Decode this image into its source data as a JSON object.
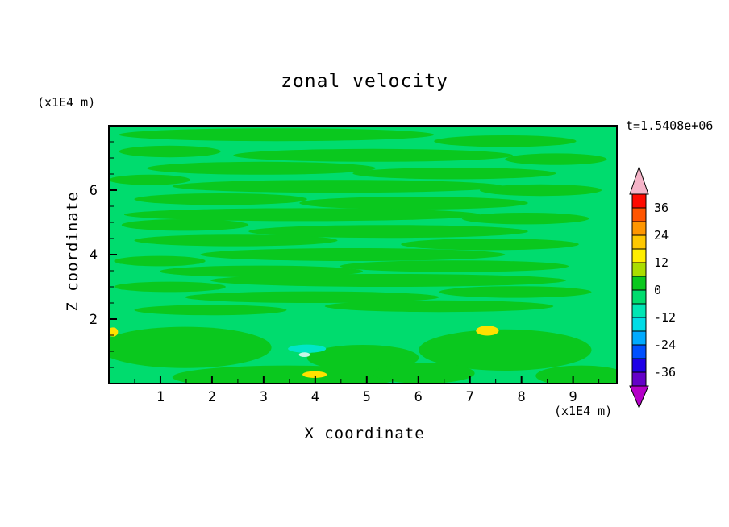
{
  "page_background": "#FFFFFF",
  "chart_data": {
    "type": "heatmap",
    "title": "zonal velocity",
    "time_annotation": "t=1.5408e+06",
    "xlabel": "X coordinate",
    "ylabel": "Z coordinate",
    "x_unit": "(x1E4 m)",
    "y_unit": "(x1E4 m)",
    "x_range": [
      0,
      9.85
    ],
    "y_range": [
      0,
      8.0
    ],
    "x_ticks": [
      1,
      2,
      3,
      4,
      5,
      6,
      7,
      8,
      9
    ],
    "x_minor_step": 0.5,
    "y_ticks": [
      2,
      4,
      6
    ],
    "y_minor_step": 0.5,
    "contour_interval": 6,
    "colorbar": {
      "tick_labels": [
        36,
        24,
        12,
        0,
        -12,
        -24,
        -36
      ],
      "levels": [
        42,
        36,
        30,
        24,
        18,
        12,
        6,
        0,
        -6,
        -12,
        -18,
        -24,
        -30,
        -36,
        -42
      ],
      "colors": [
        "#FF0A00",
        "#FF5500",
        "#FF9600",
        "#FFC800",
        "#FFEE00",
        "#AADD00",
        "#0AC81E",
        "#00DC6E",
        "#00E6B4",
        "#00DCE6",
        "#00AAFF",
        "#0050FF",
        "#1E00E6",
        "#6400C8"
      ],
      "over_arrow_color": "#F5B4C8",
      "under_arrow_color": "#B400C8"
    },
    "field": {
      "description": "Zonal velocity is near zero almost everywhere: broad areas in the -6..0 band (spring green) with thin horizontal streaks in the 0..6 band (green). Weak minima around -12 (cyan, with a pale core) near x=3.9,z=1.1; weak maxima around +13 (yellow) near x=7.4,z=1.6 and x=4.0,z=0.3 and at the left edge near z=1.6.",
      "background_color": "#00DC6E",
      "band_color": "#0AC81E",
      "bands": [
        [
          0.33,
          0.035,
          0.62,
          0.05
        ],
        [
          0.78,
          0.06,
          0.28,
          0.045
        ],
        [
          0.12,
          0.1,
          0.2,
          0.045
        ],
        [
          0.52,
          0.115,
          0.55,
          0.05
        ],
        [
          0.88,
          0.13,
          0.2,
          0.045
        ],
        [
          0.3,
          0.165,
          0.45,
          0.05
        ],
        [
          0.68,
          0.185,
          0.4,
          0.045
        ],
        [
          0.08,
          0.21,
          0.16,
          0.04
        ],
        [
          0.45,
          0.235,
          0.65,
          0.05
        ],
        [
          0.85,
          0.25,
          0.24,
          0.045
        ],
        [
          0.22,
          0.285,
          0.34,
          0.045
        ],
        [
          0.6,
          0.3,
          0.45,
          0.05
        ],
        [
          0.38,
          0.345,
          0.7,
          0.05
        ],
        [
          0.82,
          0.36,
          0.25,
          0.045
        ],
        [
          0.15,
          0.385,
          0.25,
          0.045
        ],
        [
          0.55,
          0.41,
          0.55,
          0.05
        ],
        [
          0.25,
          0.445,
          0.4,
          0.045
        ],
        [
          0.75,
          0.46,
          0.35,
          0.045
        ],
        [
          0.48,
          0.5,
          0.6,
          0.05
        ],
        [
          0.1,
          0.525,
          0.18,
          0.04
        ],
        [
          0.68,
          0.545,
          0.45,
          0.045
        ],
        [
          0.3,
          0.565,
          0.4,
          0.045
        ],
        [
          0.55,
          0.6,
          0.7,
          0.05
        ],
        [
          0.12,
          0.625,
          0.22,
          0.04
        ],
        [
          0.8,
          0.645,
          0.3,
          0.045
        ],
        [
          0.4,
          0.665,
          0.5,
          0.045
        ],
        [
          0.65,
          0.7,
          0.45,
          0.045
        ],
        [
          0.2,
          0.715,
          0.3,
          0.04
        ],
        [
          0.15,
          0.86,
          0.34,
          0.16
        ],
        [
          0.5,
          0.9,
          0.22,
          0.1
        ],
        [
          0.78,
          0.87,
          0.34,
          0.16
        ],
        [
          0.35,
          0.975,
          0.45,
          0.09
        ],
        [
          0.93,
          0.97,
          0.18,
          0.08
        ],
        [
          0.62,
          0.96,
          0.2,
          0.08
        ]
      ],
      "patches": [
        [
          0.39,
          0.865,
          0.075,
          0.032,
          "#00E6C8"
        ],
        [
          0.385,
          0.888,
          0.022,
          0.018,
          "#C8F5E6"
        ],
        [
          0.745,
          0.795,
          0.045,
          0.038,
          "#FFE100"
        ],
        [
          0.405,
          0.965,
          0.048,
          0.026,
          "#FFE100"
        ],
        [
          0.008,
          0.8,
          0.02,
          0.035,
          "#FFE100"
        ]
      ]
    }
  }
}
